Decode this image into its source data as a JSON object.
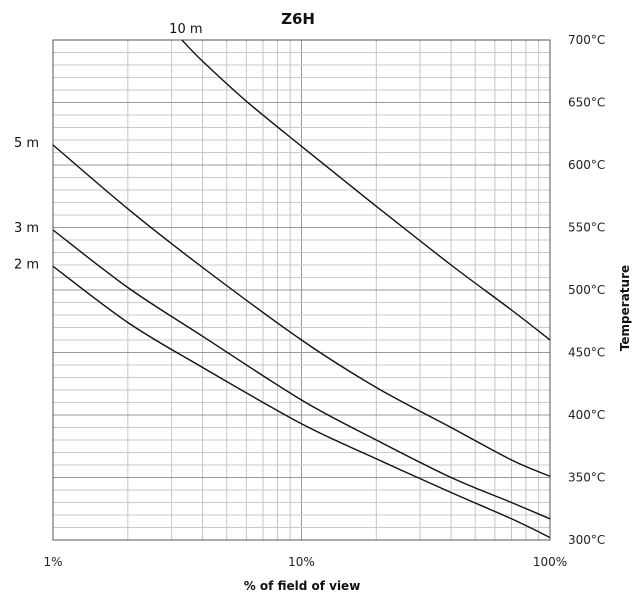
{
  "chart_data": {
    "type": "line",
    "title": "Z6H",
    "xlabel": "% of field of view",
    "ylabel": "Temperature",
    "x_scale": "log",
    "xlim": [
      1,
      100
    ],
    "ylim": [
      300,
      700
    ],
    "x_ticks": [
      {
        "value": 1,
        "label": "1%"
      },
      {
        "value": 10,
        "label": "10%"
      },
      {
        "value": 100,
        "label": "100%"
      }
    ],
    "y_ticks": [
      {
        "value": 300,
        "label": "300°C"
      },
      {
        "value": 350,
        "label": "350°C"
      },
      {
        "value": 400,
        "label": "400°C"
      },
      {
        "value": 450,
        "label": "450°C"
      },
      {
        "value": 500,
        "label": "500°C"
      },
      {
        "value": 550,
        "label": "550°C"
      },
      {
        "value": 600,
        "label": "600°C"
      },
      {
        "value": 650,
        "label": "650°C"
      },
      {
        "value": 700,
        "label": "700°C"
      }
    ],
    "grid": true,
    "legend": "none",
    "series": [
      {
        "name": "10 m",
        "x": [
          3.3,
          4,
          6,
          10,
          20,
          40,
          70,
          100
        ],
        "y": [
          700,
          683,
          651,
          615,
          567,
          520,
          484,
          460
        ]
      },
      {
        "name": "5 m",
        "x": [
          1,
          2,
          4,
          10,
          20,
          40,
          70,
          100
        ],
        "y": [
          616,
          565,
          518,
          460,
          422,
          390,
          364,
          351
        ]
      },
      {
        "name": "3 m",
        "x": [
          1,
          2,
          4,
          10,
          20,
          40,
          70,
          100
        ],
        "y": [
          548,
          502,
          463,
          412,
          380,
          350,
          330,
          317
        ]
      },
      {
        "name": "2 m",
        "x": [
          1,
          2,
          4,
          10,
          20,
          40,
          70,
          100
        ],
        "y": [
          519,
          474,
          438,
          393,
          365,
          338,
          317,
          302
        ]
      }
    ]
  }
}
